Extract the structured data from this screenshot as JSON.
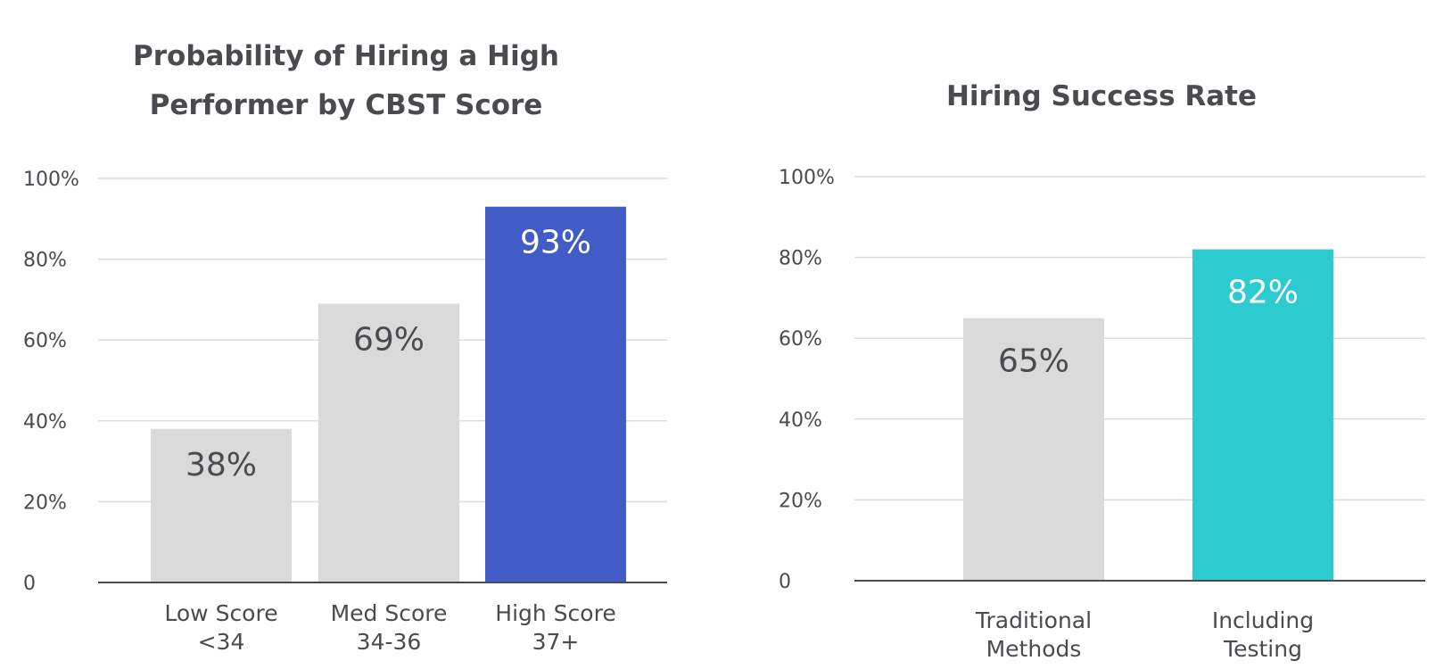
{
  "chart_data": [
    {
      "type": "bar",
      "title": [
        "Probability of Hiring a High",
        "Performer by CBST Score"
      ],
      "categories": [
        [
          "Low Score",
          "<34"
        ],
        [
          "Med Score",
          "34-36"
        ],
        [
          "High Score",
          "37+"
        ]
      ],
      "values": [
        38,
        69,
        93
      ],
      "data_labels": [
        "38%",
        "69%",
        "93%"
      ],
      "bar_colors": [
        "#d9dad9",
        "#d9dad9",
        "#425cc7"
      ],
      "label_colors": [
        "#4a4b4f",
        "#4a4b4f",
        "#ffffff"
      ],
      "yticks": [
        "0",
        "20%",
        "40%",
        "60%",
        "80%",
        "100%"
      ],
      "ylim": [
        0,
        100
      ],
      "grid": true,
      "legend": "none"
    },
    {
      "type": "bar",
      "title": [
        "Hiring Success Rate"
      ],
      "categories": [
        [
          "Traditional",
          "Methods"
        ],
        [
          "Including",
          "Testing"
        ]
      ],
      "values": [
        65,
        82
      ],
      "data_labels": [
        "65%",
        "82%"
      ],
      "bar_colors": [
        "#d9dad9",
        "#2ccbd0"
      ],
      "label_colors": [
        "#4a4b4f",
        "#ffffff"
      ],
      "yticks": [
        "0",
        "20%",
        "40%",
        "60%",
        "80%",
        "100%"
      ],
      "ylim": [
        0,
        100
      ],
      "grid": true,
      "legend": "none"
    }
  ]
}
